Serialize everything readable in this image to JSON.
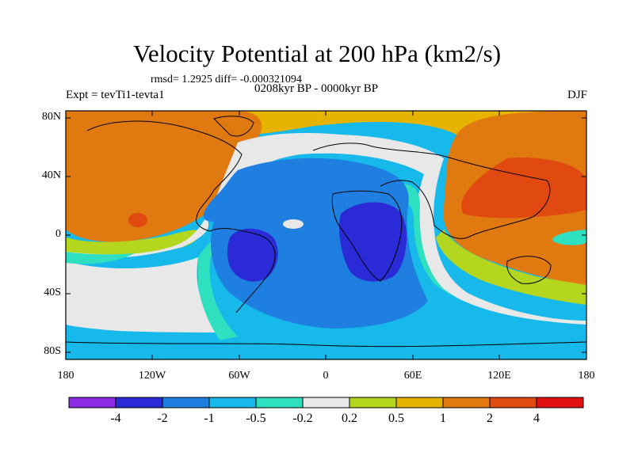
{
  "title": "Velocity Potential at 200 hPa (km2/s)",
  "stats_text": "rmsd= 1.2925  diff= -0.000321094",
  "period_text": "0208kyr BP - 0000kyr BP",
  "experiment_text": "Expt = tevTi1-tevta1",
  "season_text": "DJF",
  "map": {
    "projection": "cylindrical equidistant",
    "lat_ticks": [
      "80N",
      "40N",
      "0",
      "40S",
      "80S"
    ],
    "lon_ticks": [
      "180",
      "120W",
      "60W",
      "0",
      "60E",
      "120E",
      "180"
    ]
  },
  "colorbar": {
    "labels": [
      "-4",
      "-2",
      "-1",
      "-0.5",
      "-0.2",
      "0.2",
      "0.5",
      "1",
      "2",
      "4"
    ],
    "colors": [
      "#8a2be2",
      "#2a2ad6",
      "#1e7fe0",
      "#17b8ea",
      "#2ee0c0",
      "#e8e8e8",
      "#b5d61e",
      "#e6b400",
      "#e07a10",
      "#e04a10",
      "#e01010"
    ]
  }
}
